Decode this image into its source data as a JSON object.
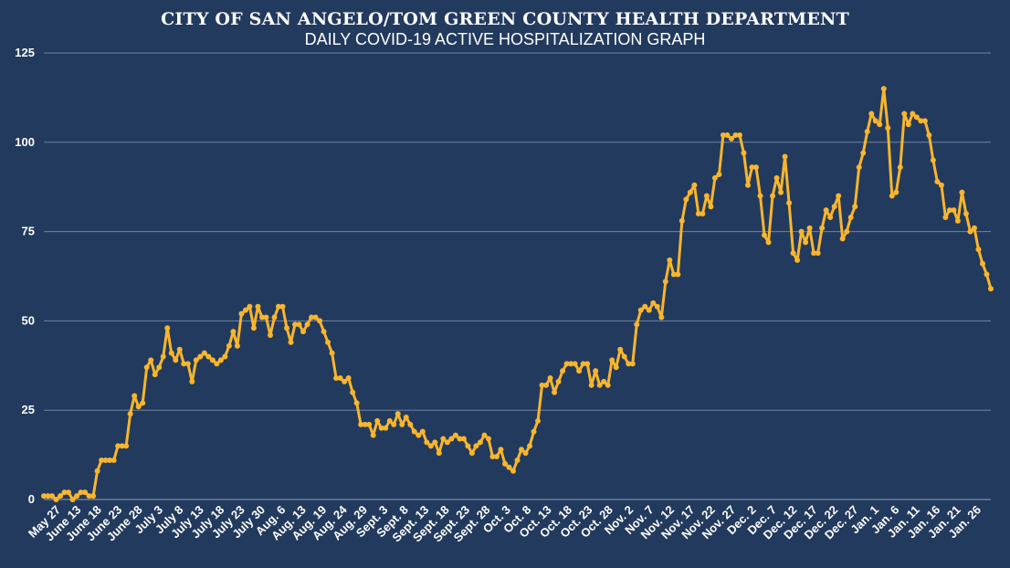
{
  "chart_data": {
    "type": "line",
    "title": "CITY OF SAN ANGELO/TOM GREEN COUNTY HEALTH DEPARTMENT",
    "subtitle": "DAILY COVID-19 ACTIVE HOSPITALIZATION GRAPH",
    "xlabel": "",
    "ylabel": "",
    "ylim": [
      0,
      125
    ],
    "yticks": [
      0,
      25,
      50,
      75,
      100,
      125
    ],
    "grid": true,
    "legend": "none",
    "colors": {
      "background": "#223a5e",
      "line": "#f9b52c",
      "grid": "#6f84a3",
      "text": "#ffffff"
    },
    "xtick_labels": [
      "May 27",
      "June 13",
      "June 18",
      "June 23",
      "June 28",
      "July 3",
      "July 8",
      "July 13",
      "July 18",
      "July 23",
      "July 30",
      "Aug. 6",
      "Aug. 13",
      "Aug. 19",
      "Aug. 24",
      "Aug. 29",
      "Sept. 3",
      "Sept. 8",
      "Sept. 13",
      "Sept. 18",
      "Sept. 23",
      "Sept. 28",
      "Oct. 3",
      "Oct. 8",
      "Oct. 13",
      "Oct. 18",
      "Oct. 23",
      "Oct. 28",
      "Nov. 2",
      "Nov. 7",
      "Nov. 12",
      "Nov. 17",
      "Nov. 22",
      "Nov. 27",
      "Dec. 2",
      "Dec. 7",
      "Dec. 12",
      "Dec. 17",
      "Dec. 22",
      "Dec. 27",
      "Jan. 1",
      "Jan. 6",
      "Jan. 11",
      "Jan. 16",
      "Jan. 21",
      "Jan. 26"
    ],
    "series": [
      {
        "values": [
          1,
          1,
          1,
          0,
          1,
          2,
          2,
          0,
          1,
          2,
          2,
          1,
          1,
          8,
          11,
          11,
          11,
          11,
          15,
          15,
          15,
          24,
          29,
          26,
          27,
          37,
          39,
          35,
          37,
          40,
          48,
          41,
          39,
          42,
          38,
          38,
          33,
          39,
          40,
          41,
          40,
          39,
          38,
          39,
          40,
          43,
          47,
          43,
          52,
          53,
          54,
          48,
          54,
          51,
          51,
          46,
          51,
          54,
          54,
          48,
          44,
          49,
          49,
          47,
          49,
          51,
          51,
          50,
          47,
          44,
          41,
          34,
          34,
          33,
          34,
          30,
          27,
          21,
          21,
          21,
          18,
          22,
          20,
          20,
          22,
          21,
          24,
          21,
          23,
          21,
          19,
          18,
          19,
          16,
          15,
          16,
          13,
          17,
          16,
          17,
          18,
          17,
          17,
          15,
          13,
          15,
          16,
          18,
          17,
          12,
          12,
          14,
          10,
          9,
          8,
          11,
          14,
          13,
          15,
          19,
          22,
          32,
          32,
          34,
          30,
          33,
          36,
          38,
          38,
          38,
          36,
          38,
          38,
          32,
          36,
          32,
          33,
          32,
          39,
          37,
          42,
          40,
          38,
          38,
          49,
          53,
          54,
          53,
          55,
          54,
          51,
          61,
          67,
          63,
          63,
          78,
          84,
          86,
          88,
          80,
          80,
          85,
          82,
          90,
          91,
          102,
          102,
          101,
          102,
          102,
          97,
          88,
          93,
          93,
          85,
          74,
          72,
          85,
          90,
          86,
          96,
          83,
          69,
          67,
          75,
          72,
          76,
          69,
          69,
          76,
          81,
          79,
          82,
          85,
          73,
          75,
          79,
          82,
          93,
          97,
          103,
          108,
          106,
          105,
          115,
          104,
          85,
          86,
          93,
          108,
          105,
          108,
          107,
          106,
          106,
          102,
          95,
          89,
          88,
          79,
          81,
          81,
          78,
          86,
          80,
          75,
          76,
          70,
          66,
          63,
          59
        ]
      }
    ]
  }
}
